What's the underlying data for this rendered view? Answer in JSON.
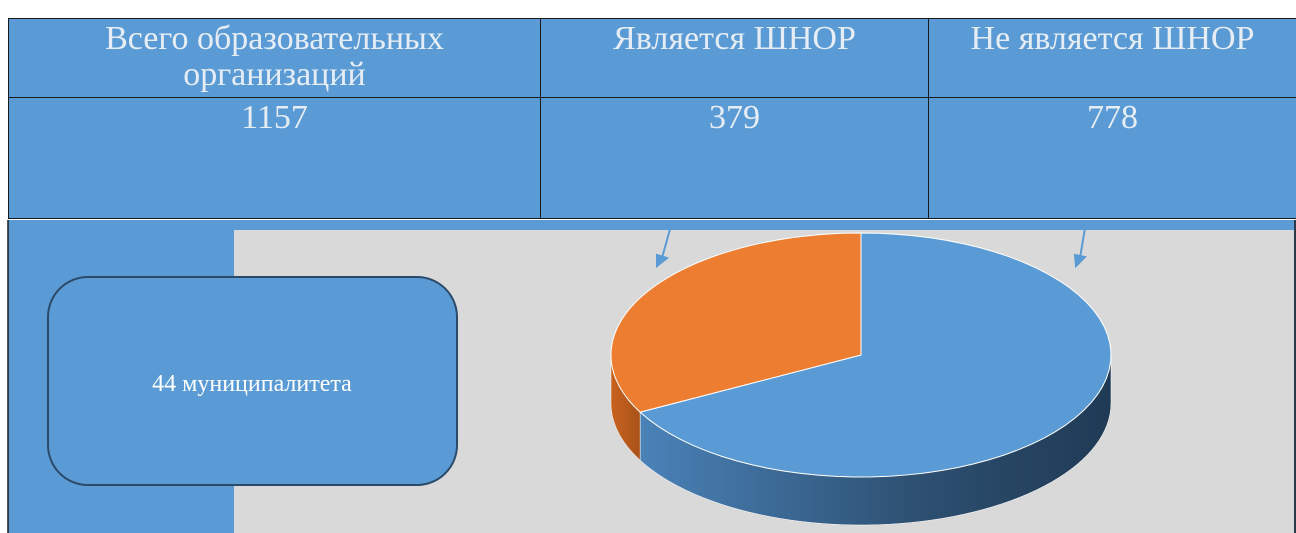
{
  "table": {
    "headers": [
      "Всего образовательных организаций",
      "Является ШНОР",
      "Не является ШНОР"
    ],
    "values": [
      1157,
      379,
      778
    ]
  },
  "box": {
    "label": "44 муниципалитета"
  },
  "pie": {
    "colors": [
      "#ed7d31",
      "#5b9bd5"
    ]
  }
}
